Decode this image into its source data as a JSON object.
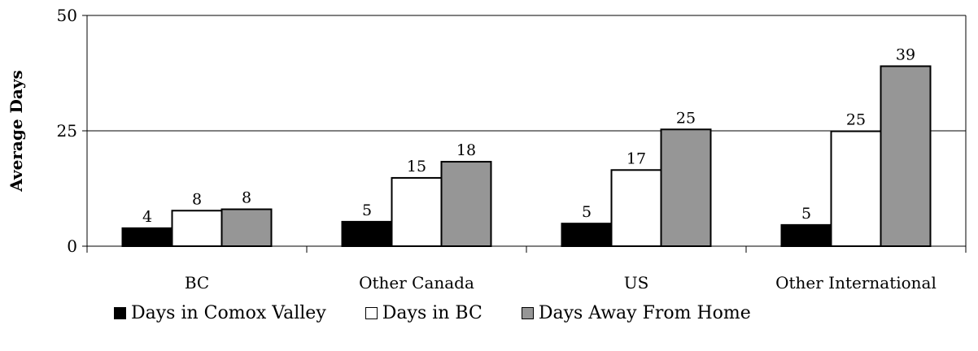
{
  "chart_data": {
    "type": "bar",
    "title": "",
    "xlabel": "",
    "ylabel": "Average Days",
    "ylim": [
      0,
      50
    ],
    "yticks": [
      0,
      25,
      50
    ],
    "grid": "horizontal major lines",
    "legend_position": "bottom",
    "categories": [
      "BC",
      "Other Canada",
      "US",
      "Other International"
    ],
    "series": [
      {
        "name": "Days in Comox Valley",
        "color": "#000000",
        "values": [
          4,
          5,
          5,
          5
        ],
        "plot_values": [
          3.9,
          5.3,
          4.9,
          4.6
        ]
      },
      {
        "name": "Days in BC",
        "color": "#ffffff",
        "values": [
          8,
          15,
          17,
          25
        ],
        "plot_values": [
          7.7,
          14.8,
          16.5,
          24.9
        ]
      },
      {
        "name": "Days Away From Home",
        "color": "#969696",
        "values": [
          8,
          18,
          25,
          39
        ],
        "plot_values": [
          8.0,
          18.3,
          25.3,
          39.0
        ]
      }
    ]
  }
}
